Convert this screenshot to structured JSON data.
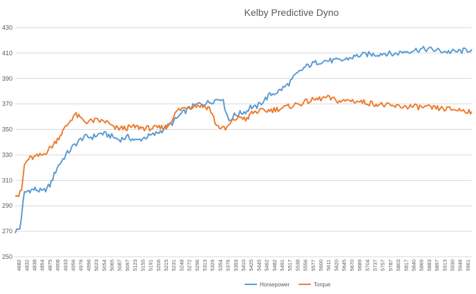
{
  "chart_data": {
    "type": "line",
    "title": "Kelby Predictive Dyno",
    "xlabel": "",
    "ylabel": "",
    "ylim": [
      250,
      430
    ],
    "yticks": [
      250,
      270,
      290,
      310,
      330,
      350,
      370,
      390,
      410,
      430
    ],
    "grid": true,
    "legend_position": "bottom",
    "x_tick_labels": [
      "4682",
      "4832",
      "4838",
      "4854",
      "4875",
      "4908",
      "4933",
      "4956",
      "4976",
      "4996",
      "5023",
      "5054",
      "5065",
      "5087",
      "5097",
      "5123",
      "5155",
      "5191",
      "5206",
      "5215",
      "5231",
      "5248",
      "5272",
      "5296",
      "5313",
      "5329",
      "5354",
      "5376",
      "5393",
      "5410",
      "5425",
      "5445",
      "5462",
      "5482",
      "5491",
      "5517",
      "5538",
      "5556",
      "5577",
      "5600",
      "5611",
      "5620",
      "5645",
      "5670",
      "5689",
      "5704",
      "5737",
      "5757",
      "5787",
      "5803",
      "5817",
      "5840",
      "5869",
      "5883",
      "5897",
      "5913",
      "5930",
      "5946",
      "5961"
    ],
    "x_range": [
      4682,
      5970
    ],
    "colors": {
      "Horsepower": "#5b9bd5",
      "Torque": "#ed7d31"
    },
    "series": [
      {
        "name": "Horsepower",
        "x": [
          4682,
          4695,
          4708,
          4720,
          4738,
          4760,
          4780,
          4800,
          4825,
          4850,
          4875,
          4900,
          4925,
          4950,
          4975,
          5000,
          5025,
          5050,
          5075,
          5100,
          5125,
          5150,
          5175,
          5200,
          5225,
          5245,
          5265,
          5285,
          5300,
          5320,
          5340,
          5342,
          5360,
          5380,
          5400,
          5425,
          5450,
          5475,
          5500,
          5525,
          5550,
          5575,
          5600,
          5625,
          5650,
          5675,
          5700,
          5725,
          5750,
          5775,
          5800,
          5825,
          5850,
          5875,
          5900,
          5925,
          5950,
          5970
        ],
        "values": [
          270,
          272,
          300,
          302,
          303,
          301,
          306,
          320,
          330,
          338,
          344,
          344,
          347,
          345,
          342,
          344,
          341,
          344,
          346,
          350,
          355,
          362,
          367,
          370,
          371,
          373,
          375,
          357,
          361,
          363,
          365,
          368,
          367,
          372,
          377,
          380,
          385,
          393,
          399,
          402,
          404,
          404,
          404,
          406,
          408,
          409,
          409,
          410,
          409,
          411,
          412,
          413,
          413,
          412,
          411,
          411,
          412,
          413
        ]
      },
      {
        "name": "Torque",
        "x": [
          4682,
          4692,
          4700,
          4708,
          4720,
          4735,
          4760,
          4790,
          4820,
          4850,
          4880,
          4910,
          4940,
          4960,
          4990,
          5020,
          5050,
          5080,
          5110,
          5140,
          5170,
          5200,
          5230,
          5250,
          5275,
          5300,
          5320,
          5340,
          5342,
          5360,
          5400,
          5440,
          5480,
          5520,
          5560,
          5600,
          5625,
          5650,
          5700,
          5750,
          5800,
          5850,
          5900,
          5950,
          5970
        ],
        "values": [
          300,
          298,
          302,
          322,
          327,
          328,
          330,
          338,
          350,
          362,
          356,
          357,
          356,
          351,
          351,
          352,
          351,
          351,
          352,
          365,
          368,
          369,
          367,
          353,
          350,
          358,
          360,
          357,
          362,
          364,
          365,
          367,
          370,
          373,
          375,
          372,
          373,
          372,
          370,
          368,
          368,
          367,
          366,
          365,
          364
        ]
      }
    ]
  }
}
